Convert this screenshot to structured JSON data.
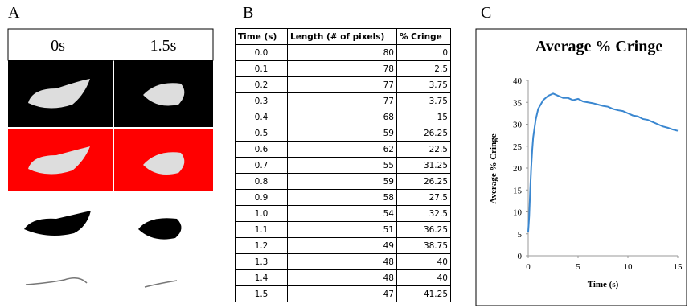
{
  "panel_a": {
    "label": "A",
    "columns": [
      "0s",
      "1.5s"
    ]
  },
  "panel_b": {
    "label": "B",
    "table": {
      "header": [
        "Time (s)",
        "Length (# of pixels)",
        "% Cringe"
      ],
      "rows": [
        [
          "0.0",
          80,
          0
        ],
        [
          "0.1",
          78,
          2.5
        ],
        [
          "0.2",
          77,
          3.75
        ],
        [
          "0.3",
          77,
          3.75
        ],
        [
          "0.4",
          68,
          15
        ],
        [
          "0.5",
          59,
          26.25
        ],
        [
          "0.6",
          62,
          22.5
        ],
        [
          "0.7",
          55,
          31.25
        ],
        [
          "0.8",
          59,
          26.25
        ],
        [
          "0.9",
          58,
          27.5
        ],
        [
          "1.0",
          54,
          32.5
        ],
        [
          "1.1",
          51,
          36.25
        ],
        [
          "1.2",
          49,
          38.75
        ],
        [
          "1.3",
          48,
          40
        ],
        [
          "1.4",
          48,
          40
        ],
        [
          "1.5",
          47,
          41.25
        ]
      ]
    }
  },
  "chart_data": {
    "type": "line",
    "panel_label": "C",
    "title": "Average % Cringe",
    "x_label": "Time (s)",
    "y_label": "Average % Cringe",
    "x": [
      0,
      0.1,
      0.2,
      0.3,
      0.4,
      0.5,
      0.75,
      1,
      1.5,
      2,
      2.5,
      3,
      3.5,
      4,
      4.5,
      5,
      5.5,
      6,
      6.5,
      7,
      7.5,
      8,
      8.5,
      9,
      9.5,
      10,
      10.5,
      11,
      11.5,
      12,
      12.5,
      13,
      13.5,
      14,
      14.5,
      15
    ],
    "series": [
      {
        "color": "#3a87d0",
        "values": [
          5.5,
          9,
          15,
          20,
          24,
          27,
          31,
          33.5,
          35.5,
          36.5,
          37,
          36.5,
          36,
          36,
          35.5,
          35.8,
          35.2,
          35,
          34.8,
          34.5,
          34.2,
          34,
          33.5,
          33.2,
          33,
          32.5,
          32,
          31.8,
          31.2,
          31,
          30.5,
          30,
          29.5,
          29.2,
          28.8,
          28.5
        ]
      }
    ],
    "xlim": [
      0,
      15
    ],
    "xticks": [
      0,
      5,
      10,
      15
    ],
    "ylim": [
      0,
      40
    ],
    "yticks": [
      0,
      5,
      10,
      15,
      20,
      25,
      30,
      35,
      40
    ]
  }
}
